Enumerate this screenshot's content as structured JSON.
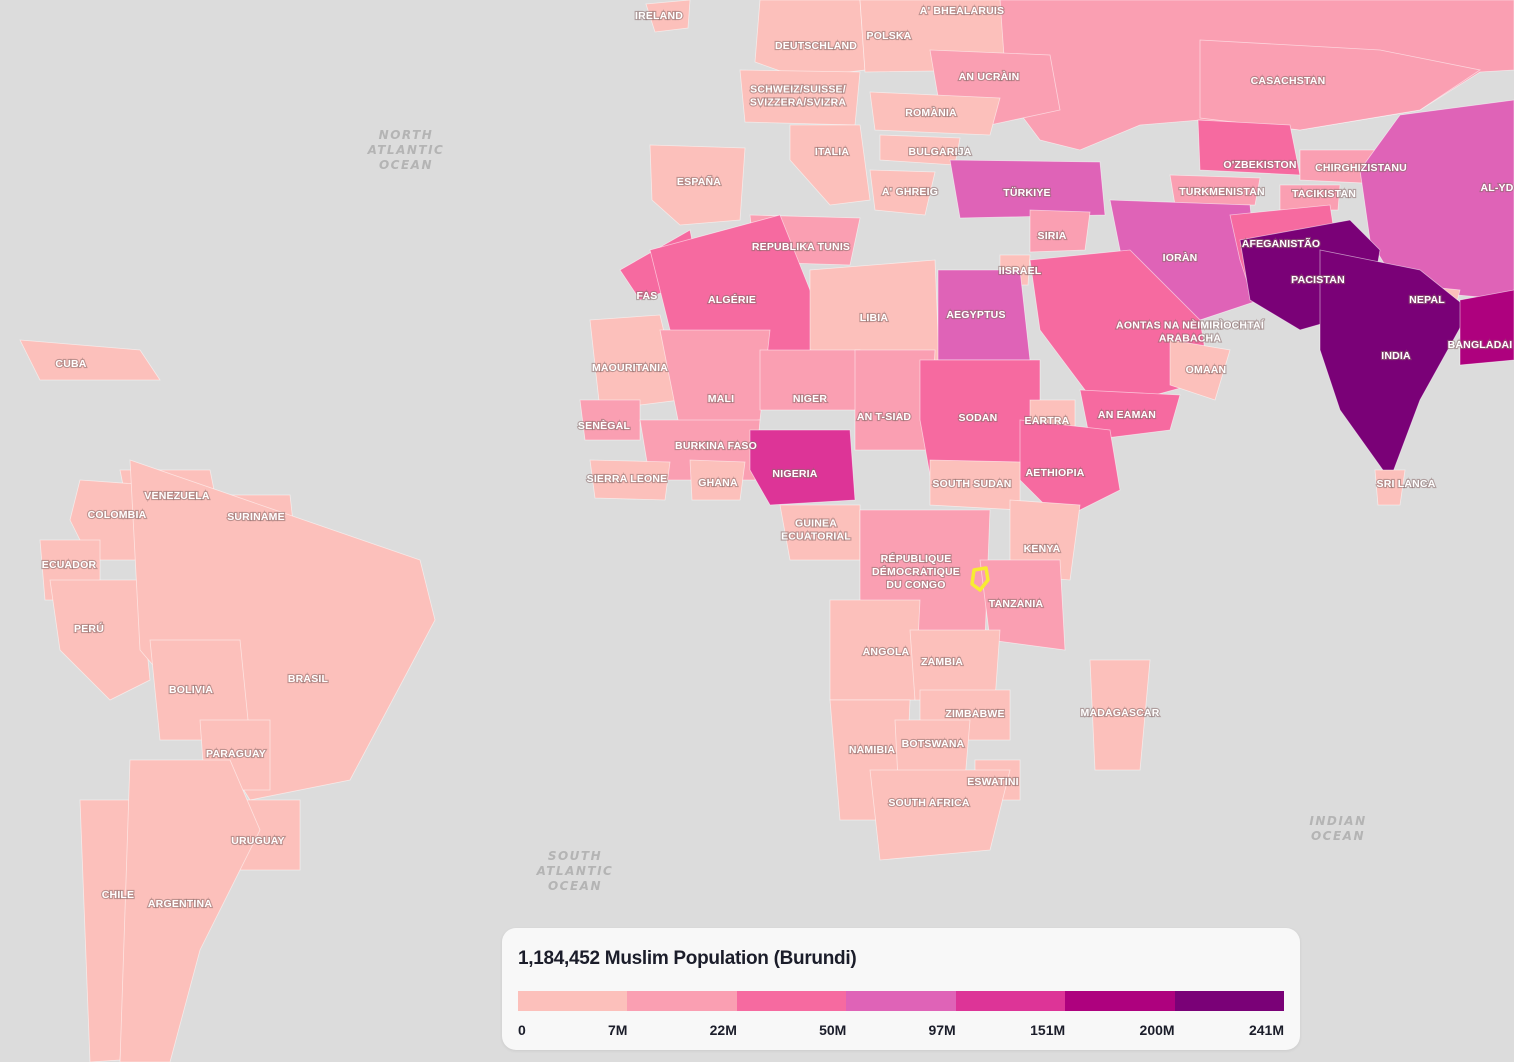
{
  "map": {
    "highlight_color": "#f7ec31",
    "ocean_color": "#dcdcdc",
    "ocean_labels": [
      {
        "lines": [
          "NORTH",
          "ATLANTIC",
          "OCEAN"
        ]
      },
      {
        "lines": [
          "SOUTH",
          "ATLANTIC",
          "OCEAN"
        ]
      },
      {
        "lines": [
          "INDIAN",
          "OCEAN"
        ]
      }
    ],
    "countries": [
      {
        "name": "IRELAND",
        "cls": 0
      },
      {
        "name": "A' BHEALARUIS",
        "cls": 1
      },
      {
        "name": "DEUTSCHLAND",
        "cls": 0
      },
      {
        "name": "POLSKA",
        "cls": 0
      },
      {
        "name": "AN UCRÀIN",
        "cls": 1
      },
      {
        "name": "CASACHSTAN",
        "cls": 1
      },
      {
        "name": "SCHWEIZ/SUISSE/\nSVIZZERA/SVIZRA",
        "cls": 0
      },
      {
        "name": "ROMÀNIA",
        "cls": 0
      },
      {
        "name": "ITALIA",
        "cls": 0
      },
      {
        "name": "BULGARIJA",
        "cls": 0
      },
      {
        "name": "ESPAÑA",
        "cls": 0
      },
      {
        "name": "A' GHREIG",
        "cls": 0
      },
      {
        "name": "TÜRKIYE",
        "cls": 3
      },
      {
        "name": "O'ZBEKISTON",
        "cls": 2
      },
      {
        "name": "CHIRGHIZISTANU",
        "cls": 1
      },
      {
        "name": "TURKMENISTAN",
        "cls": 1
      },
      {
        "name": "TACIKISTAN",
        "cls": 1
      },
      {
        "name": "AL-YD",
        "cls": 3
      },
      {
        "name": "REPUBLIKA TUNIS",
        "cls": 1
      },
      {
        "name": "SIRIA",
        "cls": 1
      },
      {
        "name": "IORÀN",
        "cls": 3
      },
      {
        "name": "AFEGANISTÃO",
        "cls": 2
      },
      {
        "name": "IISRAEL",
        "cls": 0
      },
      {
        "name": "PACISTAN",
        "cls": 6
      },
      {
        "name": "FAS",
        "cls": 2
      },
      {
        "name": "ALGÉRIE",
        "cls": 2
      },
      {
        "name": "LIBIA",
        "cls": 0
      },
      {
        "name": "AEGYPTUS",
        "cls": 3
      },
      {
        "name": "NEPAL",
        "cls": 0
      },
      {
        "name": "AONTAS NA NÈIMIRÌOCHTAÍ\nARABACHA",
        "cls": 2
      },
      {
        "name": "INDIA",
        "cls": 6
      },
      {
        "name": "BANGLADAI",
        "cls": 5
      },
      {
        "name": "MAOURITANIA",
        "cls": 0
      },
      {
        "name": "OMAAN",
        "cls": 0
      },
      {
        "name": "MALI",
        "cls": 1
      },
      {
        "name": "NIGER",
        "cls": 1
      },
      {
        "name": "AN T-SIAD",
        "cls": 1
      },
      {
        "name": "SODAN",
        "cls": 2
      },
      {
        "name": "EARTRA",
        "cls": 0
      },
      {
        "name": "AN EAMAN",
        "cls": 2
      },
      {
        "name": "SENÈGAL",
        "cls": 1
      },
      {
        "name": "BURKINA FASO",
        "cls": 1
      },
      {
        "name": "NIGERIA",
        "cls": 4
      },
      {
        "name": "AETHIOPIA",
        "cls": 2
      },
      {
        "name": "SIERRA LEONE",
        "cls": 0
      },
      {
        "name": "GHANA",
        "cls": 0
      },
      {
        "name": "SOUTH SUDAN",
        "cls": 0
      },
      {
        "name": "SRI LANCA",
        "cls": 0
      },
      {
        "name": "CUBA",
        "cls": 0
      },
      {
        "name": "VENEZUELA",
        "cls": 0
      },
      {
        "name": "COLOMBIA",
        "cls": 0
      },
      {
        "name": "SURINAME",
        "cls": 0
      },
      {
        "name": "GUINEA\nECUATORIAL",
        "cls": 0
      },
      {
        "name": "KENYA",
        "cls": 0
      },
      {
        "name": "ECUADOR",
        "cls": 0
      },
      {
        "name": "RÉPUBLIQUE\nDÉMOCRATIQUE\nDU CONGO",
        "cls": 1
      },
      {
        "name": "TANZANIA",
        "cls": 1
      },
      {
        "name": "PERÚ",
        "cls": 0
      },
      {
        "name": "ANGOLA",
        "cls": 0
      },
      {
        "name": "ZAMBIA",
        "cls": 0
      },
      {
        "name": "BRASIL",
        "cls": 0
      },
      {
        "name": "BOLIVIA",
        "cls": 0
      },
      {
        "name": "ZIMBABWE",
        "cls": 0
      },
      {
        "name": "MADAGASCAR",
        "cls": 0
      },
      {
        "name": "NAMIBIA",
        "cls": 0
      },
      {
        "name": "BOTSWANA",
        "cls": 0
      },
      {
        "name": "PARAGUAY",
        "cls": 0
      },
      {
        "name": "ESWATINI",
        "cls": 0
      },
      {
        "name": "SOUTH AFRICA",
        "cls": 0
      },
      {
        "name": "URUGUAY",
        "cls": 0
      },
      {
        "name": "CHILE",
        "cls": 0
      },
      {
        "name": "ARGENTINA",
        "cls": 0
      }
    ]
  },
  "legend": {
    "title": "1,184,452 Muslim Population (Burundi)",
    "colors": [
      "#fcc0bb",
      "#fa9fb2",
      "#f66aa0",
      "#df63b7",
      "#dd3497",
      "#ae017e",
      "#7a0177"
    ],
    "ticks": [
      "0",
      "7M",
      "22M",
      "50M",
      "97M",
      "151M",
      "200M",
      "241M"
    ]
  }
}
